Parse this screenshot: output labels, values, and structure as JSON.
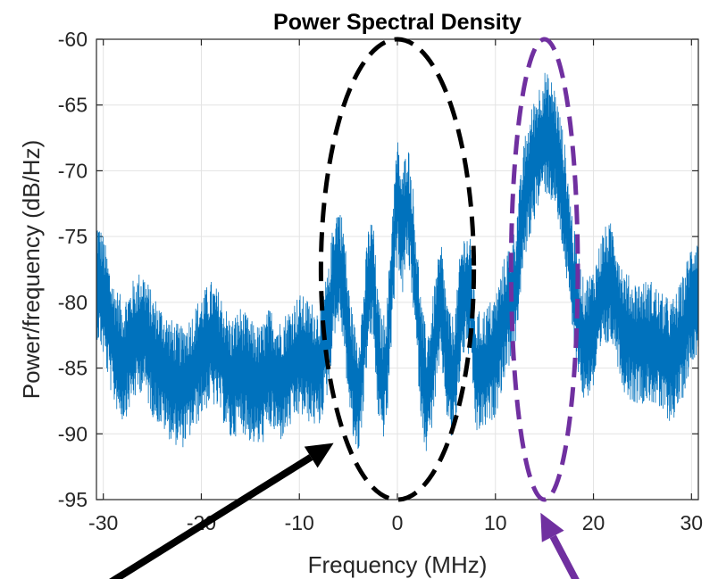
{
  "chart_data": {
    "type": "line",
    "title": "Power Spectral Density",
    "xlabel": "Frequency (MHz)",
    "ylabel": "Power/frequency (dB/Hz)",
    "xlim": [
      -30.7,
      30.7
    ],
    "ylim": [
      -95,
      -60
    ],
    "xticks": [
      -30,
      -20,
      -10,
      0,
      10,
      20,
      30
    ],
    "yticks": [
      -60,
      -65,
      -70,
      -75,
      -80,
      -85,
      -90,
      -95
    ],
    "grid": true,
    "colors": {
      "series": "#0072BD",
      "desired_highlight": "#000000",
      "interferer_highlight": "#7030A0"
    },
    "series": [
      {
        "x": [
          -30.7,
          -30,
          -29,
          -28,
          -27,
          -26,
          -25,
          -24,
          -23,
          -22,
          -21,
          -20,
          -19,
          -18,
          -17,
          -16,
          -15,
          -14,
          -13,
          -12,
          -11,
          -10,
          -9,
          -8,
          -7,
          -6.5,
          -6,
          -5.5,
          -5,
          -4.5,
          -4,
          -3.5,
          -3,
          -2.5,
          -2,
          -1.5,
          -1,
          -0.5,
          0,
          0.5,
          1,
          1.5,
          2,
          2.5,
          3,
          3.5,
          4,
          4.5,
          5,
          5.5,
          6,
          6.5,
          7,
          7.5,
          8,
          9,
          10,
          11,
          12,
          13,
          14,
          15,
          16,
          17,
          18,
          19,
          20,
          21,
          22,
          23,
          24,
          25,
          26,
          27,
          28,
          29,
          30,
          30.7
        ],
        "y": [
          -78,
          -79.5,
          -83,
          -84.5,
          -83,
          -82,
          -84,
          -85,
          -86,
          -86.5,
          -85.5,
          -84,
          -83,
          -84,
          -86,
          -85,
          -86,
          -86.5,
          -85,
          -86,
          -85,
          -84,
          -84.5,
          -85,
          -82,
          -78,
          -77,
          -78.5,
          -83,
          -86,
          -87,
          -84,
          -79,
          -78,
          -84,
          -86,
          -84,
          -77,
          -72,
          -75,
          -72,
          -75,
          -80,
          -85,
          -87,
          -85,
          -82,
          -80,
          -84,
          -86,
          -84.5,
          -80,
          -79,
          -80,
          -85.5,
          -85,
          -84,
          -81,
          -79,
          -72,
          -69,
          -67,
          -68,
          -72,
          -79,
          -83,
          -82,
          -79,
          -78.5,
          -82,
          -83,
          -83,
          -83,
          -84,
          -84.5,
          -83,
          -80,
          -79
        ]
      }
    ],
    "annotations": [
      {
        "shape": "dashed-ellipse",
        "color": "#000000",
        "center_x": 0,
        "center_y": -77.5,
        "x_radius": 7.8,
        "y_radius": 17.5
      },
      {
        "shape": "dashed-ellipse",
        "color": "#7030A0",
        "center_x": 15,
        "center_y": -77.5,
        "x_radius": 3.4,
        "y_radius": 17.5
      },
      {
        "shape": "arrow",
        "color": "#000000",
        "points_to": [
          -6.5,
          -90.7
        ]
      },
      {
        "shape": "arrow",
        "color": "#7030A0",
        "points_to": [
          14.6,
          -96
        ]
      }
    ]
  }
}
